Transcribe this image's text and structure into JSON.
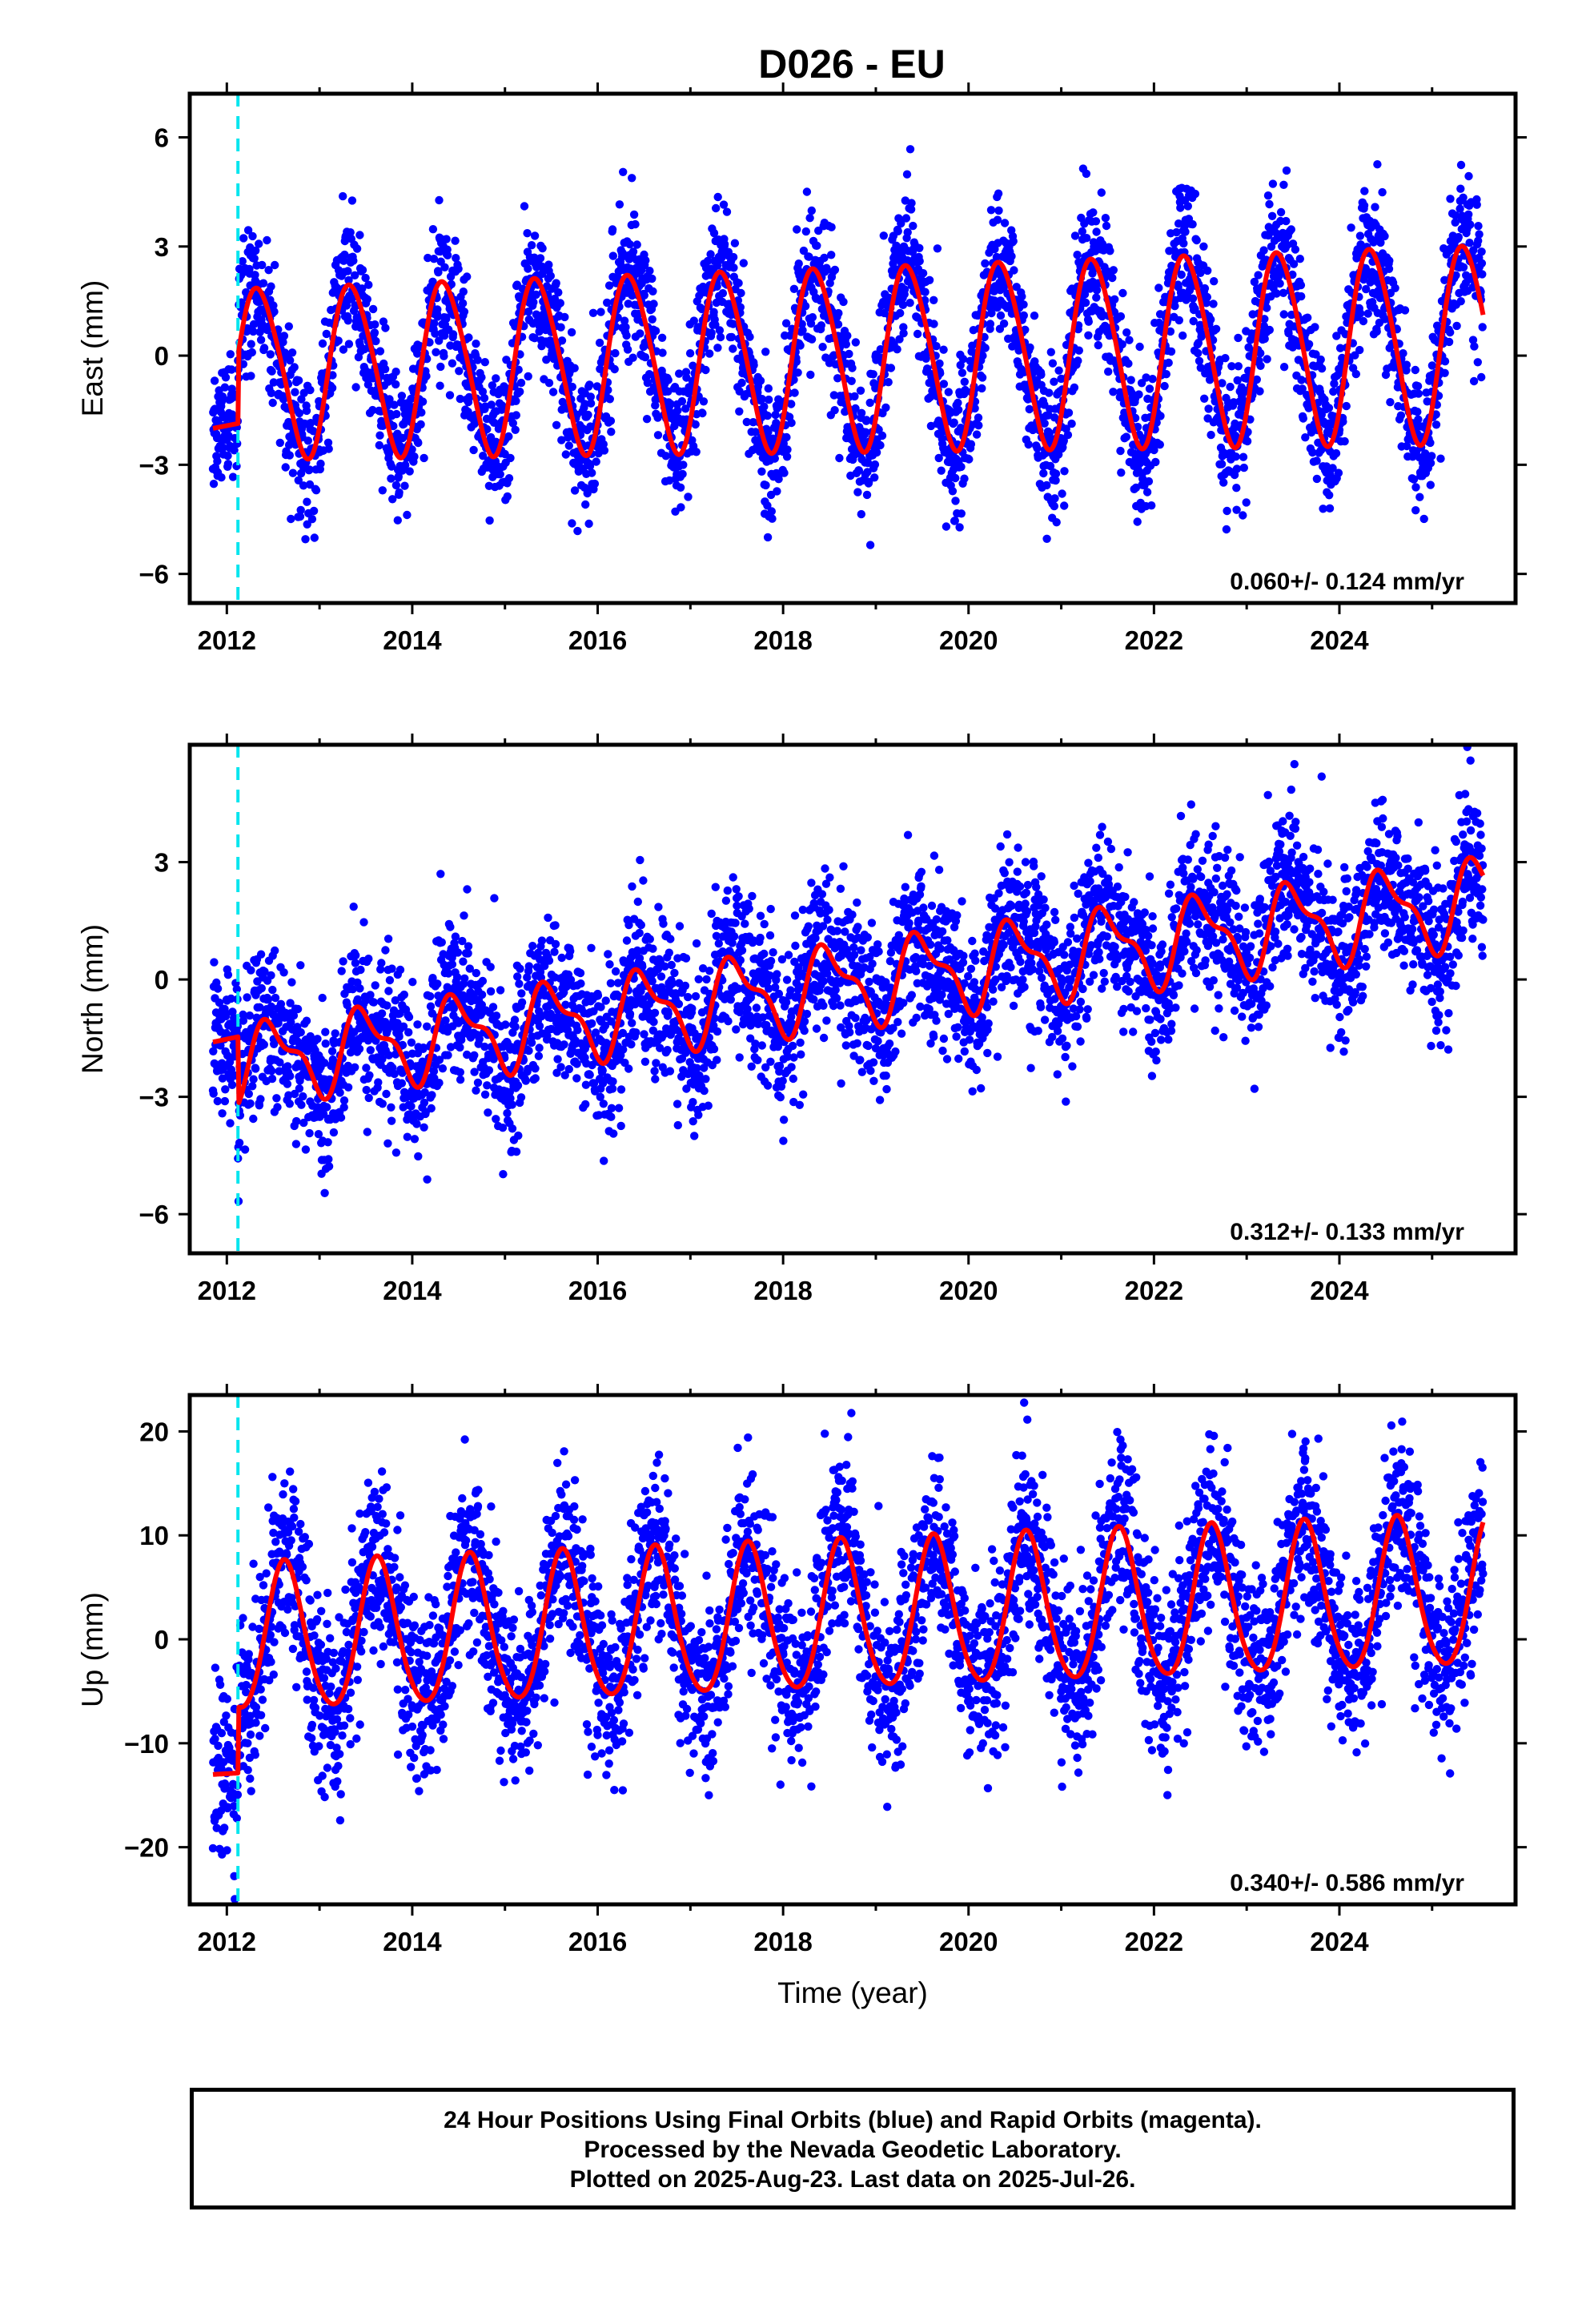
{
  "title": "D026 - EU",
  "colors": {
    "final_orbits": "#0000ff",
    "model_fit": "#ff0000",
    "event_line": "#00e5ee"
  },
  "footer": {
    "line1": "24 Hour Positions Using Final Orbits (blue) and Rapid Orbits (magenta).",
    "line2": "Processed by the Nevada Geodetic Laboratory.",
    "line3": "Plotted on 2025-Aug-23. Last data on 2025-Jul-26."
  },
  "chart_data": [
    {
      "type": "scatter",
      "ylabel": "East (mm)",
      "xlabel": "",
      "xlim": [
        2011.6,
        2025.9
      ],
      "ylim": [
        -6.8,
        7.2
      ],
      "xticks": [
        2012,
        2014,
        2016,
        2018,
        2020,
        2022,
        2024
      ],
      "yticks": [
        -6,
        -3,
        0,
        3,
        6
      ],
      "event_line_x": 2012.12,
      "annotation": "0.060+/- 0.124 mm/yr",
      "data_start": 2011.85,
      "data_end": 2025.55,
      "model": {
        "offset": -0.45,
        "trend_mm_per_yr": 0.06,
        "annual_amp_start": 2.3,
        "annual_amp_end": 2.7,
        "annual_peak_frac": 0.35,
        "semiannual_amp": 0.25,
        "semiannual_peak_frac": 0.2,
        "step_at": 2012.12,
        "pre_step_value": -2.0
      },
      "scatter_sd": 1.0
    },
    {
      "type": "scatter",
      "ylabel": "North (mm)",
      "xlabel": "",
      "xlim": [
        2011.6,
        2025.9
      ],
      "ylim": [
        -7.0,
        6.0
      ],
      "xticks": [
        2012,
        2014,
        2016,
        2018,
        2020,
        2022,
        2024
      ],
      "yticks": [
        -6,
        -3,
        0,
        3
      ],
      "event_line_x": 2012.12,
      "annotation": "0.312+/- 0.133 mm/yr",
      "data_start": 2011.85,
      "data_end": 2025.55,
      "model": {
        "offset": -2.2,
        "trend_mm_per_yr": 0.312,
        "annual_amp_start": 0.9,
        "annual_amp_end": 1.0,
        "annual_peak_frac": 0.5,
        "semiannual_amp": 0.4,
        "semiannual_peak_frac": 0.35,
        "step_at": 2012.12,
        "pre_step_value": -1.6
      },
      "scatter_sd": 1.0
    },
    {
      "type": "scatter",
      "ylabel": "Up (mm)",
      "xlabel": "Time (year)",
      "xlim": [
        2011.6,
        2025.9
      ],
      "ylim": [
        -25.5,
        23.5
      ],
      "xticks": [
        2012,
        2014,
        2016,
        2018,
        2020,
        2022,
        2024
      ],
      "yticks": [
        -20,
        -10,
        0,
        10,
        20
      ],
      "event_line_x": 2012.12,
      "annotation": "0.340+/- 0.586 mm/yr",
      "data_start": 2011.85,
      "data_end": 2025.55,
      "model": {
        "offset": -0.3,
        "trend_mm_per_yr": 0.34,
        "annual_amp_start": 7.0,
        "annual_amp_end": 7.2,
        "annual_peak_frac": 0.63,
        "semiannual_amp": 0.8,
        "semiannual_peak_frac": 0.1,
        "step_at": 2012.12,
        "pre_step_value": -13.0
      },
      "scatter_sd": 4.3
    }
  ]
}
